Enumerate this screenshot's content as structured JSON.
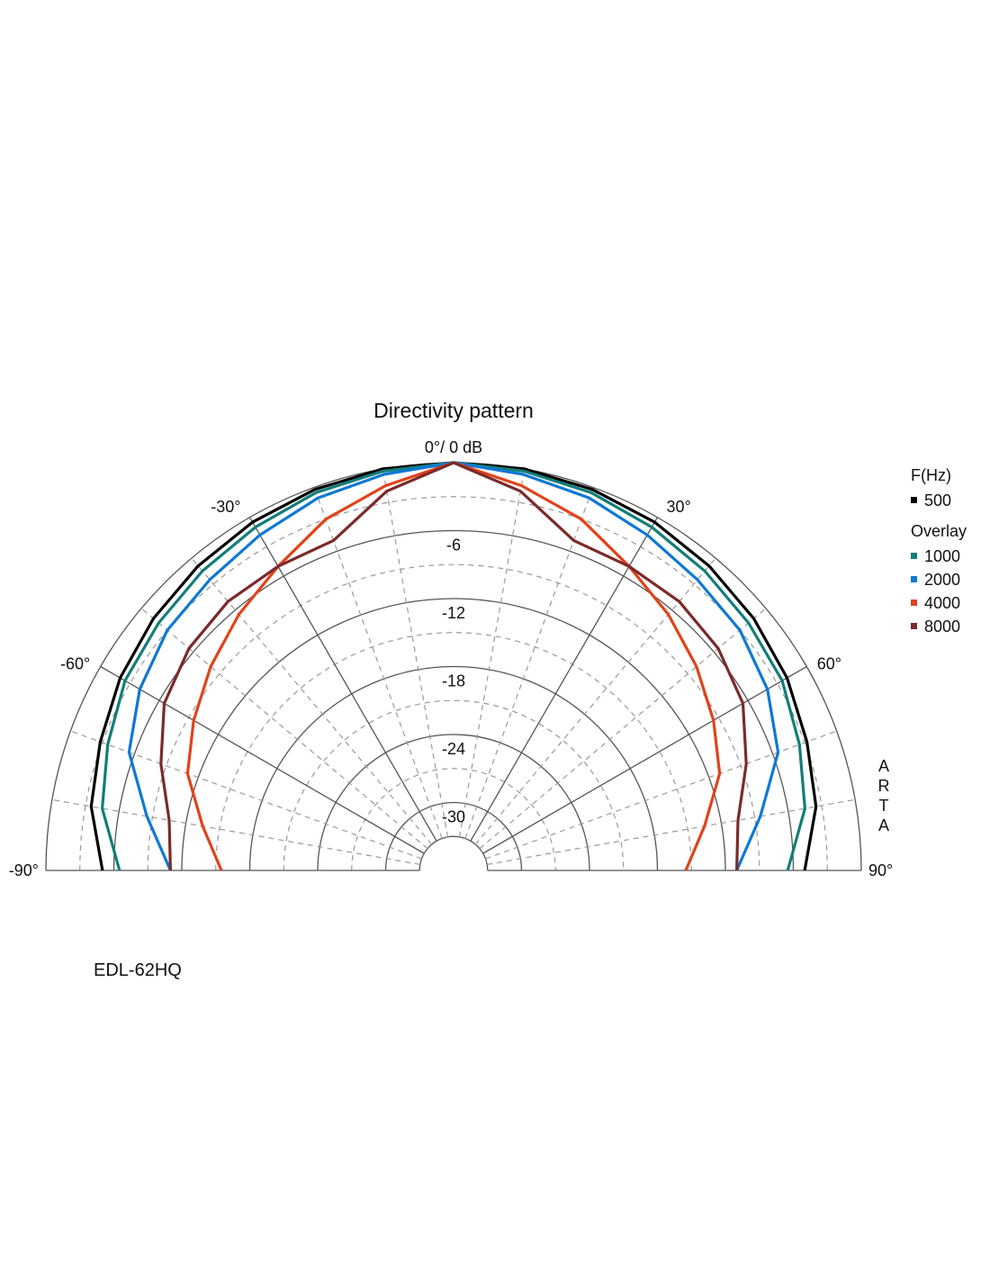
{
  "chart_data": {
    "type": "polar",
    "title": "Directivity pattern",
    "top_label": "0°/ 0 dB",
    "radial_unit": "dB",
    "radial_range": [
      -36,
      0
    ],
    "radial_ticks": [
      "-6",
      "-12",
      "-18",
      "-24",
      "-30"
    ],
    "radial_tick_values": [
      -6,
      -12,
      -18,
      -24,
      -30
    ],
    "angle_range": [
      -90,
      90
    ],
    "angle_labels": [
      "-90°",
      "-60°",
      "-30°",
      "30°",
      "60°",
      "90°"
    ],
    "angle_label_values": [
      -90,
      -60,
      -30,
      30,
      60,
      90
    ],
    "grid": true,
    "legend": {
      "position": "right",
      "header": "F(Hz)",
      "overlay_header": "Overlay"
    },
    "angles": [
      -90,
      -80,
      -70,
      -60,
      -50,
      -40,
      -30,
      -20,
      -10,
      0,
      10,
      20,
      30,
      40,
      50,
      60,
      70,
      80,
      90
    ],
    "series": [
      {
        "name": "500",
        "color": "#000000",
        "values": [
          -5.0,
          -3.5,
          -2.8,
          -2.0,
          -1.4,
          -0.9,
          -0.5,
          -0.2,
          0,
          0,
          0,
          -0.2,
          -0.5,
          -0.9,
          -1.4,
          -2.0,
          -2.8,
          -3.5,
          -5.0
        ]
      },
      {
        "name": "1000",
        "color": "#137d7a",
        "values": [
          -6.5,
          -4.5,
          -3.5,
          -2.5,
          -2.0,
          -1.5,
          -1.0,
          -0.5,
          -0.2,
          0,
          -0.2,
          -0.5,
          -1.0,
          -1.5,
          -2.0,
          -2.5,
          -3.5,
          -4.5,
          -6.5
        ]
      },
      {
        "name": "2000",
        "color": "#0e78d4",
        "values": [
          -11.0,
          -8.5,
          -5.5,
          -4.0,
          -3.0,
          -2.5,
          -1.8,
          -1.0,
          -0.5,
          0,
          -0.5,
          -1.0,
          -1.8,
          -2.5,
          -3.0,
          -4.0,
          -5.5,
          -8.5,
          -11.0
        ]
      },
      {
        "name": "4000",
        "color": "#e0431a",
        "values": [
          -15.5,
          -13.5,
          -11.0,
          -9.5,
          -8.0,
          -6.5,
          -5.0,
          -3.0,
          -1.5,
          0,
          -1.5,
          -3.0,
          -5.0,
          -6.5,
          -8.0,
          -9.5,
          -11.0,
          -13.5,
          -15.5
        ]
      },
      {
        "name": "8000",
        "color": "#7b2a2a",
        "values": [
          -11.0,
          -10.5,
          -8.5,
          -6.5,
          -5.5,
          -5.0,
          -5.0,
          -5.0,
          -2.0,
          0,
          -2.0,
          -5.0,
          -5.0,
          -5.0,
          -5.5,
          -6.5,
          -8.5,
          -10.5,
          -11.0
        ]
      }
    ]
  },
  "model_name": "EDL-62HQ",
  "watermark": "ARTA"
}
